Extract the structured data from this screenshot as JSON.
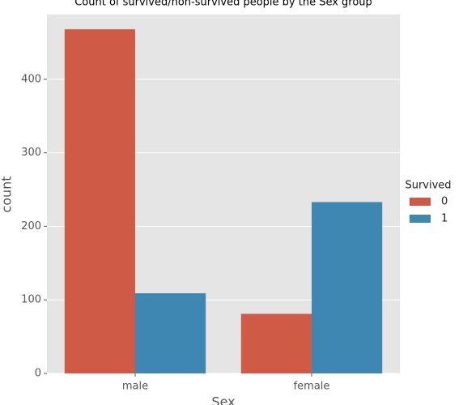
{
  "chart_data": {
    "type": "bar",
    "title": "Count of survived/non-survived people by the Sex group",
    "xlabel": "Sex",
    "ylabel": "count",
    "categories": [
      "male",
      "female"
    ],
    "legend_title": "Survived",
    "series": [
      {
        "name": "0",
        "color": "#cf5a45",
        "values": [
          468,
          81
        ]
      },
      {
        "name": "1",
        "color": "#3e87b3",
        "values": [
          109,
          233
        ]
      }
    ],
    "ylim": [
      0,
      488
    ],
    "yticks": [
      0,
      100,
      200,
      300,
      400
    ],
    "grid": true,
    "legend": "right"
  }
}
